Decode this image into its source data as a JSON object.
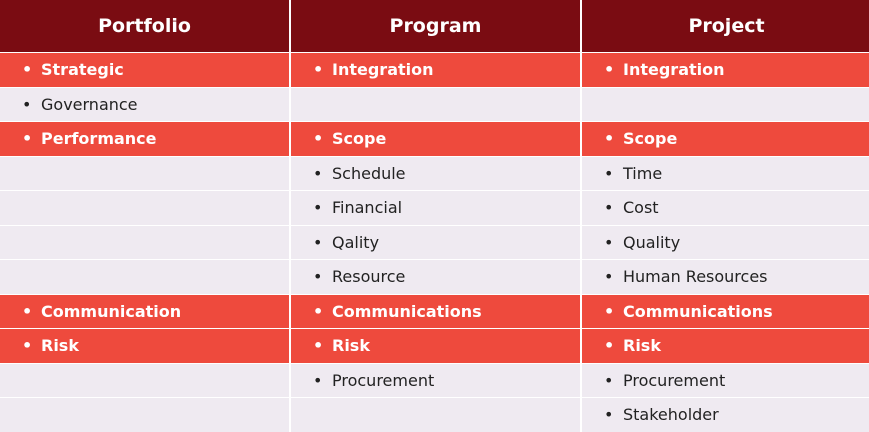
{
  "table": {
    "header": [
      "Portfolio",
      "Program",
      "Project"
    ],
    "rows": [
      {
        "cells": [
          "Strategic",
          "Integration",
          "Integration"
        ],
        "highlight": true
      },
      {
        "cells": [
          "Governance",
          null,
          null
        ],
        "highlight": false
      },
      {
        "cells": [
          "Performance",
          "Scope",
          "Scope"
        ],
        "highlight": true
      },
      {
        "cells": [
          null,
          "Schedule",
          "Time"
        ],
        "highlight": false
      },
      {
        "cells": [
          null,
          "Financial",
          "Cost"
        ],
        "highlight": false
      },
      {
        "cells": [
          null,
          "Qality",
          "Quality"
        ],
        "highlight": false
      },
      {
        "cells": [
          null,
          "Resource",
          "Human Resources"
        ],
        "highlight": false
      },
      {
        "cells": [
          "Communication",
          "Communications",
          "Communications"
        ],
        "highlight": true
      },
      {
        "cells": [
          "Risk",
          "Risk",
          "Risk"
        ],
        "highlight": true
      },
      {
        "cells": [
          null,
          "Procurement",
          "Procurement"
        ],
        "highlight": false
      },
      {
        "cells": [
          null,
          null,
          "Stakeholder"
        ],
        "highlight": false
      }
    ]
  }
}
